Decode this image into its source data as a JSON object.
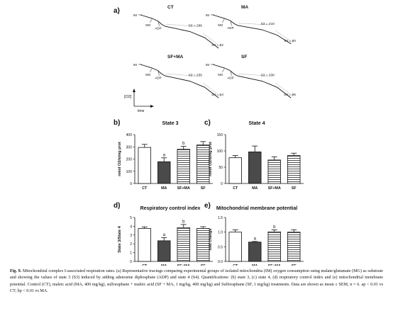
{
  "panel_a": {
    "label": "a)",
    "traces": [
      {
        "title": "CT",
        "im": "IM",
        "mg": "MG",
        "adp": "ADP",
        "s3": "S3 = 296",
        "s4": "S4 = 82",
        "trace": [
          [
            0,
            0.92
          ],
          [
            0.14,
            0.84
          ],
          [
            0.21,
            0.78
          ],
          [
            0.26,
            0.7
          ],
          [
            0.3,
            0.66
          ],
          [
            0.6,
            0.54
          ],
          [
            0.78,
            0.4
          ],
          [
            0.95,
            0.16
          ]
        ]
      },
      {
        "title": "MA",
        "im": "IM",
        "mg": "MG",
        "adp": "ADP",
        "s3": "S3 = 210",
        "s4": "S4 = 80",
        "trace": [
          [
            0,
            0.92
          ],
          [
            0.14,
            0.84
          ],
          [
            0.21,
            0.79
          ],
          [
            0.26,
            0.72
          ],
          [
            0.3,
            0.68
          ],
          [
            0.6,
            0.58
          ],
          [
            0.78,
            0.46
          ],
          [
            0.95,
            0.26
          ]
        ]
      },
      {
        "title": "SF+MA",
        "im": "IM",
        "mg": "MG",
        "adp": "ADP",
        "s3": "S3 = 255",
        "s4": "S4 = 54",
        "trace": [
          [
            0,
            0.92
          ],
          [
            0.14,
            0.84
          ],
          [
            0.21,
            0.78
          ],
          [
            0.26,
            0.7
          ],
          [
            0.3,
            0.66
          ],
          [
            0.6,
            0.54
          ],
          [
            0.78,
            0.4
          ],
          [
            0.95,
            0.16
          ]
        ]
      },
      {
        "title": "SF",
        "im": "IM",
        "mg": "MG",
        "adp": "ADP",
        "s3": "S3 = 330",
        "s4": "S4 = 96",
        "trace": [
          [
            0,
            0.92
          ],
          [
            0.14,
            0.84
          ],
          [
            0.21,
            0.78
          ],
          [
            0.26,
            0.7
          ],
          [
            0.3,
            0.66
          ],
          [
            0.6,
            0.54
          ],
          [
            0.78,
            0.4
          ],
          [
            0.95,
            0.16
          ]
        ]
      }
    ],
    "axis_y": "[O2]",
    "axis_x": "time"
  },
  "chart_data": [
    {
      "panel": "b)",
      "type": "bar",
      "title": "State 3",
      "ylabel": "nmol O2/s/mg prot",
      "categories": [
        "CT",
        "MA",
        "SF+MA",
        "SF"
      ],
      "values": [
        295,
        178,
        280,
        315
      ],
      "errors": [
        25,
        32,
        25,
        28
      ],
      "ylim": [
        0,
        400
      ],
      "yticks": [
        "0",
        "100",
        "200",
        "300",
        "400"
      ],
      "annotations": [
        "",
        "a",
        "b",
        ""
      ]
    },
    {
      "panel": "c)",
      "type": "bar",
      "title": "State 4",
      "ylabel": "nmol O2/s/mg prot",
      "categories": [
        "CT",
        "MA",
        "SF+MA",
        "SF"
      ],
      "values": [
        79,
        97,
        72,
        86
      ],
      "errors": [
        7,
        18,
        10,
        7
      ],
      "ylim": [
        0,
        150
      ],
      "yticks": [
        "0",
        "50",
        "100",
        "150"
      ],
      "annotations": [
        "",
        "",
        "",
        ""
      ]
    },
    {
      "panel": "d)",
      "type": "bar",
      "title": "Respiratory control index",
      "ylabel": "State 3/State 4",
      "categories": [
        "CT",
        "MA",
        "SF+MA",
        "SF"
      ],
      "values": [
        3.75,
        2.35,
        3.85,
        3.75
      ],
      "errors": [
        0.18,
        0.35,
        0.35,
        0.2
      ],
      "ylim": [
        0,
        5
      ],
      "yticks": [
        "0",
        "1",
        "2",
        "3",
        "4",
        "5"
      ],
      "annotations": [
        "",
        "a",
        "b",
        ""
      ]
    },
    {
      "panel": "e)",
      "type": "bar",
      "title": "Mitochondrial membrane potential",
      "ylabel": "fold change",
      "categories": [
        "CT",
        "MA",
        "SF+MA",
        "SF"
      ],
      "values": [
        1.0,
        0.66,
        1.01,
        1.0
      ],
      "errors": [
        0.08,
        0.02,
        0.07,
        0.08
      ],
      "ylim": [
        0,
        1.5
      ],
      "yticks": [
        "0.0",
        "0.5",
        "1.0",
        "1.5"
      ],
      "annotations": [
        "",
        "a",
        "b",
        ""
      ]
    }
  ],
  "caption": {
    "label": "Fig. 9.",
    "text": "Mitochondrial complex I-associated respiration rates. (a) Representative tracings comparing experimental groups of isolated mitochondria (IM) oxygen consumption using malate/glutamate (MG) as substrate and showing the values of state 3 (S3) induced by adding adenosine diphosphate (ADP) and state 4 (S4). Quantifications: (b) state 3, (c) state 4, (d) respiratory control index and (e) mitochondrial membrane potential. Control (CT), maleic acid (MA, 400 mg/kg), sulforaphane + maleic acid (SF + MA, 1 mg/kg, 400 mg/kg) and Sulforaphane (SF, 1 mg/kg) treatments. Data are shown as mean ± SEM, n = 6. ap < 0.01 vs CT; bp < 0.01 vs MA."
  },
  "colors": {
    "CT": "#ffffff",
    "MA": "#4a4a4a",
    "SF+MA": "#4a4a4a",
    "SF": "#ffffff",
    "stroke": "#111111"
  }
}
